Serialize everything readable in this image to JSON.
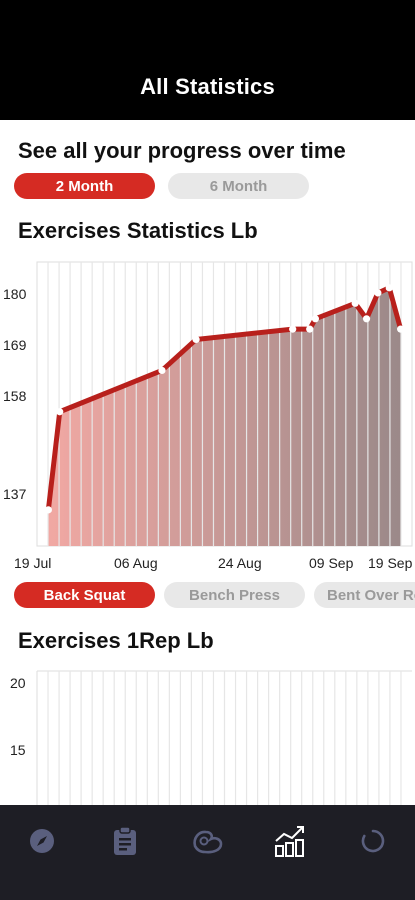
{
  "header": {
    "title": "All Statistics"
  },
  "intro": {
    "heading": "See all your progress over time"
  },
  "range_tabs": [
    {
      "label": "2 Month",
      "active": true
    },
    {
      "label": "6 Month",
      "active": false
    }
  ],
  "stats_section": {
    "title": "Exercises Statistics Lb"
  },
  "exercise_tabs": [
    {
      "label": "Back Squat",
      "active": true
    },
    {
      "label": "Bench Press",
      "active": false
    },
    {
      "label": "Bent Over Row",
      "active": false
    }
  ],
  "onerep_section": {
    "title": "Exercises 1Rep Lb"
  },
  "chart_data": [
    {
      "type": "area",
      "title": "Exercises Statistics Lb",
      "y_ticks": [
        "180",
        "169",
        "158",
        "137"
      ],
      "x_ticks": [
        "19 Jul",
        "06 Aug",
        "24 Aug",
        "09 Sep",
        "19 Sep"
      ],
      "grid": "vertical",
      "series": [
        {
          "points": [
            {
              "x": "2024-07-19",
              "y": 137
            },
            {
              "x": "2024-07-21",
              "y": 156
            },
            {
              "x": "2024-08-08",
              "y": 164
            },
            {
              "x": "2024-08-14",
              "y": 170
            },
            {
              "x": "2024-08-31",
              "y": 172
            },
            {
              "x": "2024-09-03",
              "y": 172
            },
            {
              "x": "2024-09-04",
              "y": 174
            },
            {
              "x": "2024-09-11",
              "y": 177
            },
            {
              "x": "2024-09-13",
              "y": 174
            },
            {
              "x": "2024-09-15",
              "y": 179
            },
            {
              "x": "2024-09-17",
              "y": 180
            },
            {
              "x": "2024-09-19",
              "y": 172
            }
          ]
        }
      ],
      "line_color": "#b8201c",
      "fill_from": "#f1a8a3",
      "fill_to": "#9b8989"
    },
    {
      "type": "line",
      "title": "Exercises 1Rep Lb",
      "y_ticks": [
        "20",
        "15"
      ],
      "grid": "vertical",
      "series": []
    }
  ],
  "tab_bar": {
    "items": [
      {
        "icon": "compass-icon"
      },
      {
        "icon": "clipboard-icon"
      },
      {
        "icon": "muscle-icon"
      },
      {
        "icon": "statistics-icon",
        "active": true
      },
      {
        "icon": "refresh-icon"
      }
    ]
  }
}
